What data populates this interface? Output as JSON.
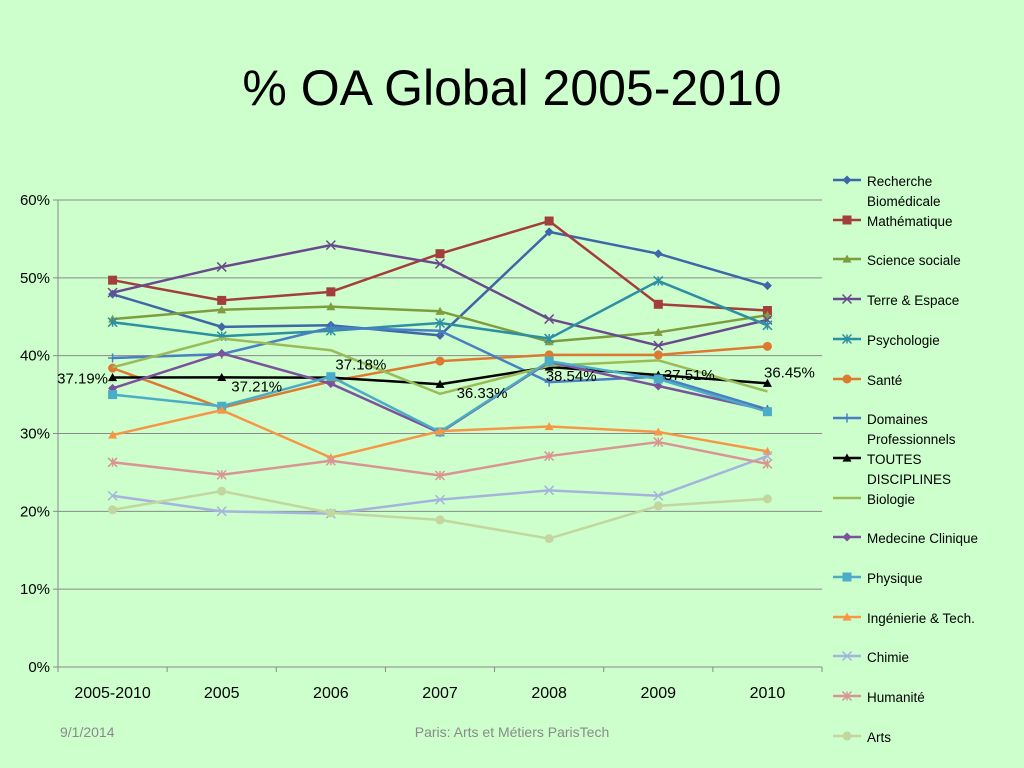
{
  "slide": {
    "title": "% OA Global 2005-2010",
    "footer_date": "9/1/2014",
    "footer_center": "Paris: Arts et Métiers ParisTech"
  },
  "chart_data": {
    "type": "line",
    "title": "% OA Global 2005-2010",
    "categories": [
      "2005-2010",
      "2005",
      "2006",
      "2007",
      "2008",
      "2009",
      "2010"
    ],
    "y_ticks": [
      "0%",
      "10%",
      "20%",
      "30%",
      "40%",
      "50%",
      "60%"
    ],
    "ylim": [
      0,
      60
    ],
    "grid": true,
    "legend_position": "right",
    "series": [
      {
        "name": "Recherche Biomédicale",
        "color": "#3f67a8",
        "marker": "diamond",
        "values": [
          47.9,
          43.7,
          43.9,
          42.6,
          55.9,
          53.1,
          49.0
        ]
      },
      {
        "name": "Mathématique",
        "color": "#a33e3b",
        "marker": "square",
        "values": [
          49.7,
          47.1,
          48.2,
          53.1,
          57.3,
          46.6,
          45.8
        ]
      },
      {
        "name": "Science sociale",
        "color": "#7f9c3e",
        "marker": "triangle",
        "values": [
          44.7,
          45.9,
          46.3,
          45.7,
          41.8,
          43.0,
          45.2
        ]
      },
      {
        "name": "Terre & Espace",
        "color": "#6a4a8c",
        "marker": "x",
        "values": [
          48.1,
          51.4,
          54.2,
          51.8,
          44.7,
          41.3,
          44.6
        ]
      },
      {
        "name": "Psychologie",
        "color": "#2e8fa3",
        "marker": "star",
        "values": [
          44.3,
          42.5,
          43.2,
          44.2,
          42.2,
          49.6,
          43.9
        ]
      },
      {
        "name": "Santé",
        "color": "#dd7a32",
        "marker": "circle",
        "values": [
          38.4,
          33.3,
          36.7,
          39.3,
          40.1,
          40.1,
          41.2
        ]
      },
      {
        "name": "Domaines Professionnels",
        "color": "#4a7fc4",
        "marker": "plus",
        "values": [
          39.7,
          40.2,
          43.6,
          43.2,
          36.6,
          37.3,
          33.1
        ]
      },
      {
        "name": "TOUTES DISCIPLINES",
        "color": "#000000",
        "marker": "triangle",
        "values": [
          37.19,
          37.21,
          37.18,
          36.33,
          38.54,
          37.51,
          36.45
        ],
        "labels": [
          "37.19%",
          "37.21%",
          "37.18%",
          "36.33%",
          "38.54%",
          "37.51%",
          "36.45%"
        ]
      },
      {
        "name": "Biologie",
        "color": "#9bbb59",
        "marker": "none",
        "values": [
          38.5,
          42.2,
          40.7,
          35.1,
          38.7,
          39.4,
          35.4
        ]
      },
      {
        "name": "Medecine Clinique",
        "color": "#7b539c",
        "marker": "diamond",
        "values": [
          35.8,
          40.3,
          36.4,
          30.1,
          39.2,
          36.1,
          33.0
        ]
      },
      {
        "name": "Physique",
        "color": "#4aacc6",
        "marker": "square",
        "values": [
          35.0,
          33.5,
          37.3,
          30.2,
          39.3,
          37.0,
          32.8
        ]
      },
      {
        "name": "Ingénierie & Tech.",
        "color": "#f79646",
        "marker": "triangle",
        "values": [
          29.8,
          33.0,
          26.9,
          30.3,
          30.9,
          30.2,
          27.7
        ]
      },
      {
        "name": "Chimie",
        "color": "#a5b4dd",
        "marker": "x",
        "values": [
          22.0,
          20.0,
          19.7,
          21.5,
          22.7,
          22.0,
          27.1
        ]
      },
      {
        "name": "Humanité",
        "color": "#d99594",
        "marker": "star",
        "values": [
          26.3,
          24.7,
          26.5,
          24.6,
          27.1,
          28.9,
          26.1
        ]
      },
      {
        "name": "Arts",
        "color": "#c4d6a0",
        "marker": "circle",
        "values": [
          20.2,
          22.6,
          19.8,
          18.9,
          16.5,
          20.7,
          21.6
        ]
      }
    ]
  }
}
